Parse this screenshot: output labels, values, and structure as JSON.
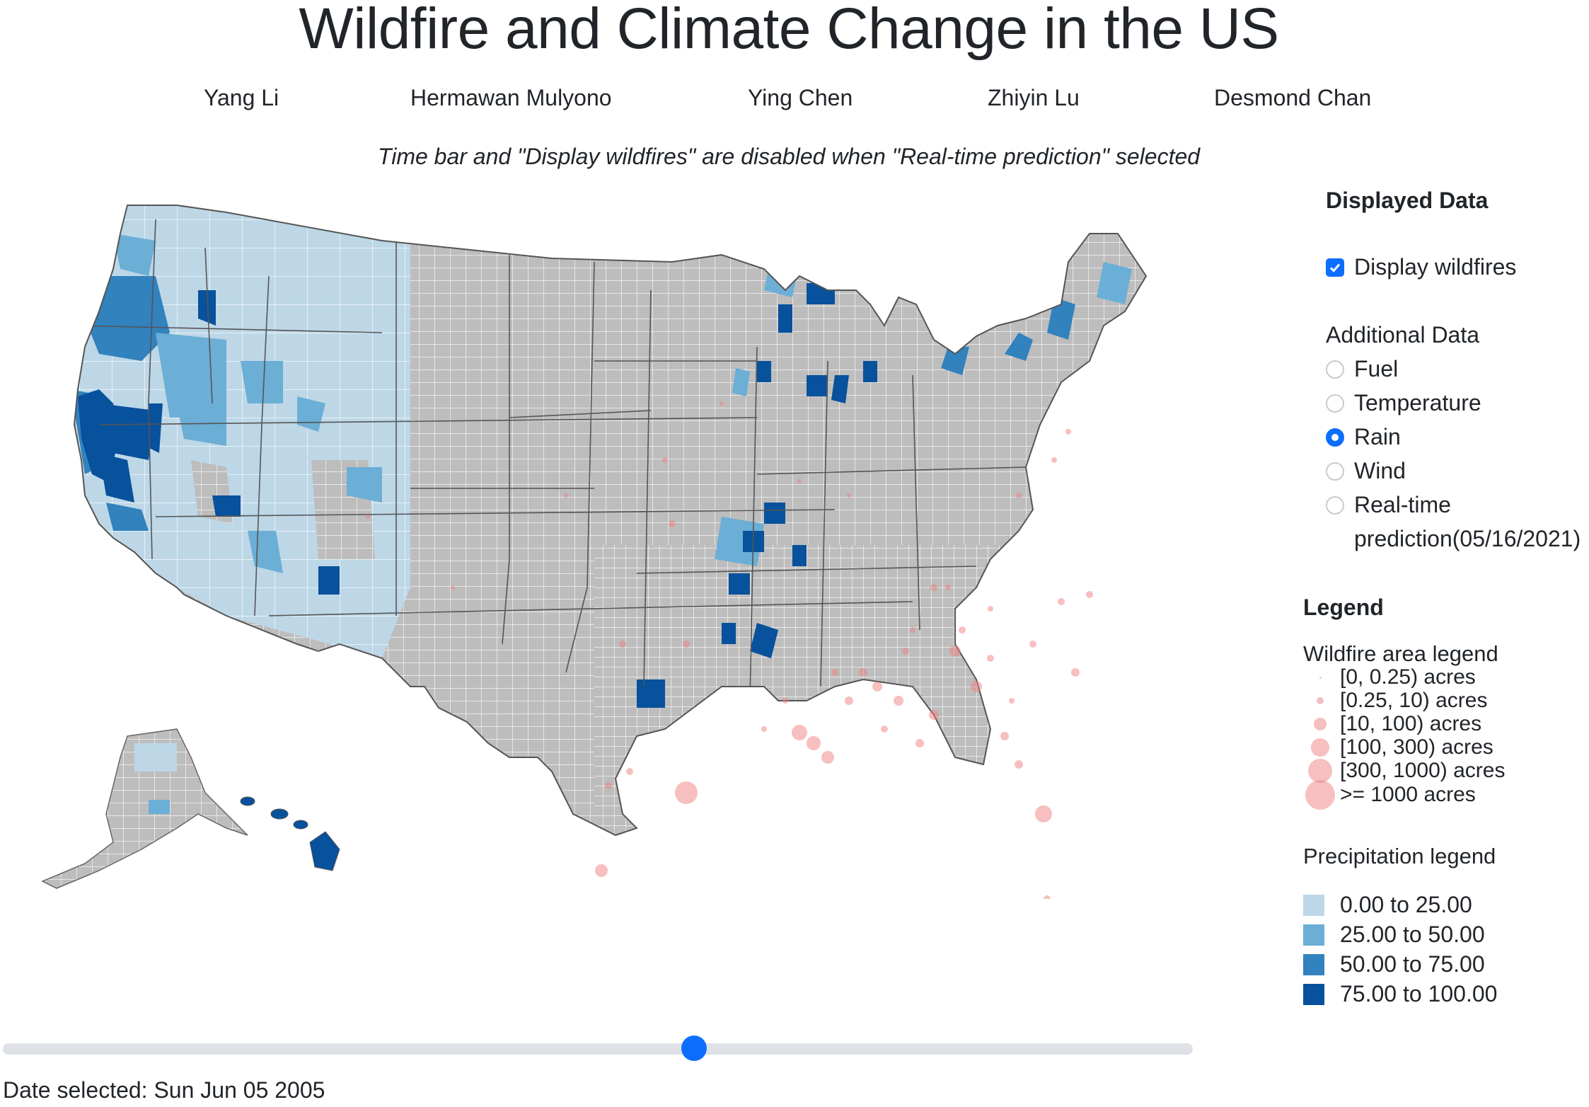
{
  "title": "Wildfire and Climate Change in the US",
  "authors": [
    "Yang Li",
    "Hermawan Mulyono",
    "Ying Chen",
    "Zhiyin Lu",
    "Desmond Chan"
  ],
  "note": "Time bar and \"Display wildfires\" are disabled when \"Real-time prediction\" selected",
  "panel": {
    "heading": "Displayed Data",
    "display_wildfires_label": "Display wildfires",
    "display_wildfires_checked": true,
    "additional_heading": "Additional Data",
    "options": [
      {
        "label": "Fuel",
        "checked": false
      },
      {
        "label": "Temperature",
        "checked": false
      },
      {
        "label": "Rain",
        "checked": true
      },
      {
        "label": "Wind",
        "checked": false
      },
      {
        "label": "Real-time",
        "label2": "prediction(05/16/2021)",
        "checked": false
      }
    ]
  },
  "legend": {
    "heading": "Legend",
    "wildfire_heading": "Wildfire area legend",
    "wildfire_items": [
      "[0, 0.25) acres",
      "[0.25, 10) acres",
      "[10, 100) acres",
      "[100, 300) acres",
      "[300, 1000) acres",
      ">= 1000 acres"
    ],
    "precip_heading": "Precipitation legend",
    "precip_items": [
      {
        "label": "0.00 to 25.00",
        "color": "#bdd7e7"
      },
      {
        "label": "25.00 to 50.00",
        "color": "#6baed6"
      },
      {
        "label": "50.00 to 75.00",
        "color": "#3182bd"
      },
      {
        "label": "75.00 to 100.00",
        "color": "#08519c"
      }
    ]
  },
  "colors": {
    "no_data": "#bdbdbd",
    "fire": "#f08080",
    "accent": "#0d6efd"
  },
  "slider": {
    "position_fraction": 0.58
  },
  "date_selected": "Date selected: Sun Jun 05 2005"
}
